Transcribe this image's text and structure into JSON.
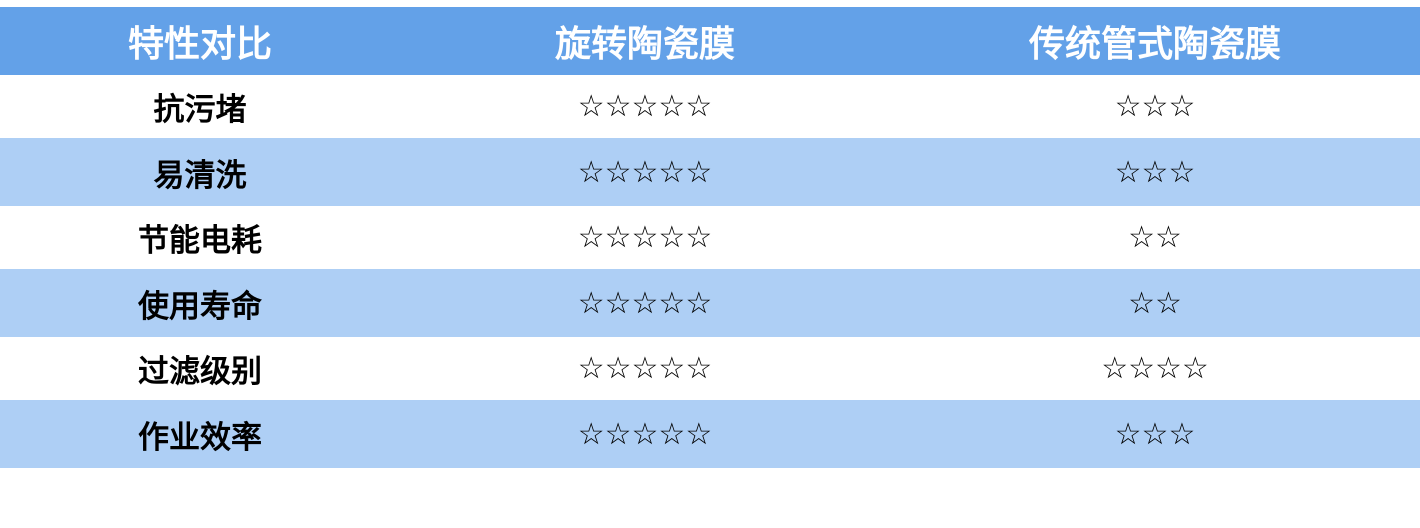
{
  "headers": [
    "特性对比",
    "旋转陶瓷膜",
    "传统管式陶瓷膜"
  ],
  "colors": {
    "header_bg": "#63a1e8",
    "alt_row_bg": "#aecff5",
    "row_bg": "#ffffff"
  },
  "rows": [
    {
      "feature": "抗污堵",
      "rotary": "☆☆☆☆☆",
      "traditional": "☆☆☆"
    },
    {
      "feature": "易清洗",
      "rotary": "☆☆☆☆☆",
      "traditional": "☆☆☆"
    },
    {
      "feature": "节能电耗",
      "rotary": "☆☆☆☆☆",
      "traditional": "☆☆"
    },
    {
      "feature": "使用寿命",
      "rotary": "☆☆☆☆☆",
      "traditional": "☆☆"
    },
    {
      "feature": "过滤级别",
      "rotary": "☆☆☆☆☆",
      "traditional": "☆☆☆☆"
    },
    {
      "feature": "作业效率",
      "rotary": "☆☆☆☆☆",
      "traditional": "☆☆☆"
    }
  ]
}
